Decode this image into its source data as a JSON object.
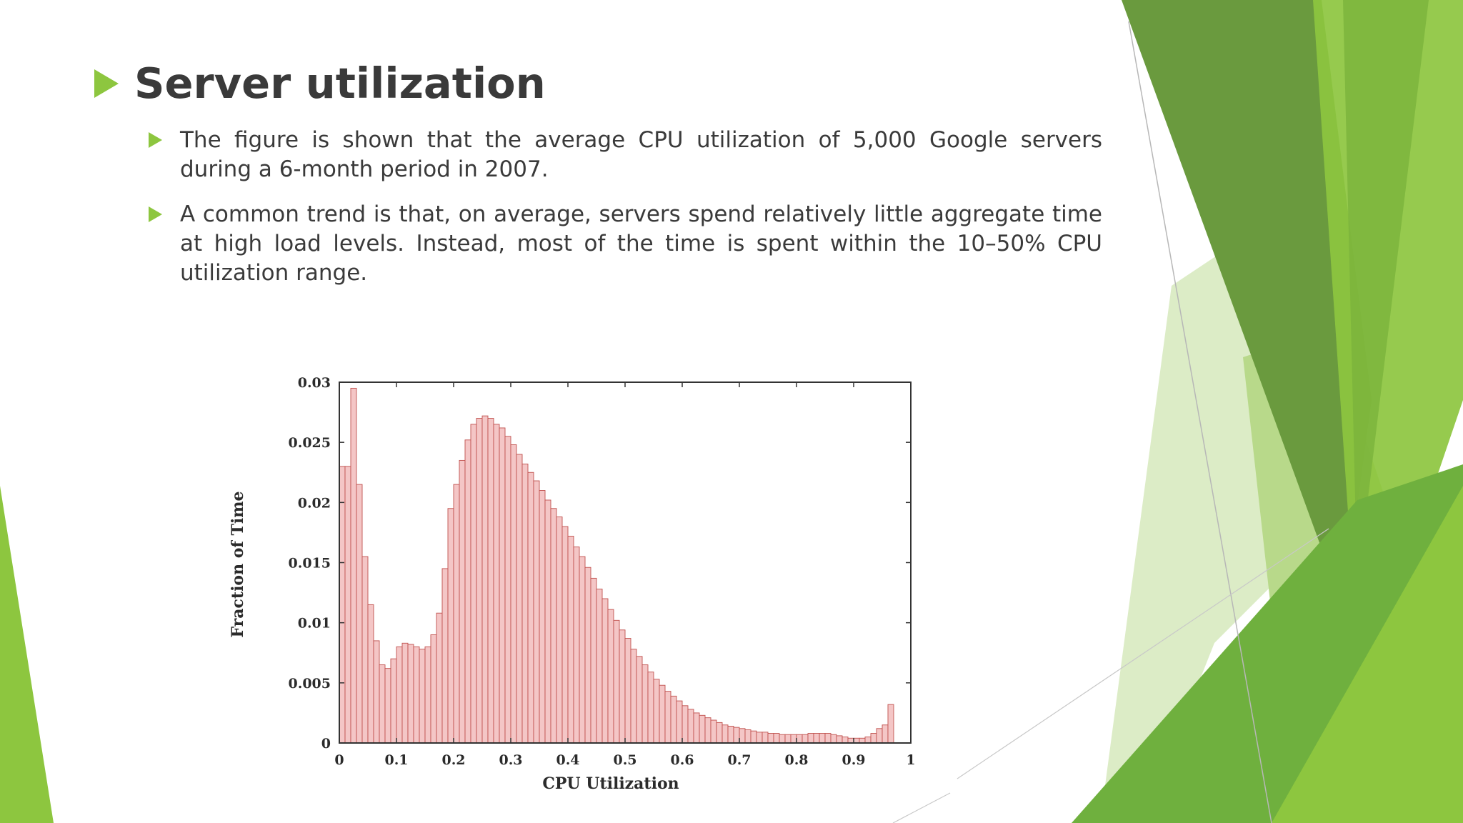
{
  "slide": {
    "title": "Server utilization",
    "bullets": [
      "The figure is shown that the average CPU utilization of 5,000 Google servers during a 6-month period in 2007.",
      "A common trend is that, on average, servers spend relatively little aggregate time at high load levels. Instead, most of the time is spent within the 10–50% CPU utilization range."
    ],
    "accent_color": "#8dc63f",
    "bullet_icon": "triangle-right-icon"
  },
  "chart_data": {
    "type": "bar",
    "title": "",
    "xlabel": "CPU Utilization",
    "ylabel": "Fraction of Time",
    "xlim": [
      0,
      1
    ],
    "ylim": [
      0,
      0.03
    ],
    "xticks": [
      "0",
      "0.1",
      "0.2",
      "0.3",
      "0.4",
      "0.5",
      "0.6",
      "0.7",
      "0.8",
      "0.9",
      "1"
    ],
    "yticks": [
      "0",
      "0.005",
      "0.01",
      "0.015",
      "0.02",
      "0.025",
      "0.03"
    ],
    "bin_width": 0.01,
    "bar_color": "#f4c6c6",
    "bar_edge_color": "#c0504d",
    "values": [
      0.023,
      0.023,
      0.0295,
      0.0215,
      0.0155,
      0.0115,
      0.0085,
      0.0065,
      0.0062,
      0.007,
      0.008,
      0.0083,
      0.0082,
      0.008,
      0.0078,
      0.008,
      0.009,
      0.0108,
      0.0145,
      0.0195,
      0.0215,
      0.0235,
      0.0252,
      0.0265,
      0.027,
      0.0272,
      0.027,
      0.0265,
      0.0262,
      0.0255,
      0.0248,
      0.024,
      0.0232,
      0.0225,
      0.0218,
      0.021,
      0.0202,
      0.0195,
      0.0188,
      0.018,
      0.0172,
      0.0163,
      0.0155,
      0.0146,
      0.0137,
      0.0128,
      0.012,
      0.0111,
      0.0102,
      0.0094,
      0.0087,
      0.0078,
      0.0072,
      0.0065,
      0.0059,
      0.0053,
      0.0048,
      0.0043,
      0.0039,
      0.0035,
      0.0031,
      0.0028,
      0.0025,
      0.0023,
      0.0021,
      0.0019,
      0.0017,
      0.0015,
      0.0014,
      0.0013,
      0.0012,
      0.0011,
      0.001,
      0.0009,
      0.0009,
      0.0008,
      0.0008,
      0.0007,
      0.0007,
      0.0007,
      0.0007,
      0.0007,
      0.0008,
      0.0008,
      0.0008,
      0.0008,
      0.0007,
      0.0006,
      0.0005,
      0.0004,
      0.0004,
      0.0004,
      0.0005,
      0.0008,
      0.0012,
      0.0015,
      0.0032
    ]
  }
}
